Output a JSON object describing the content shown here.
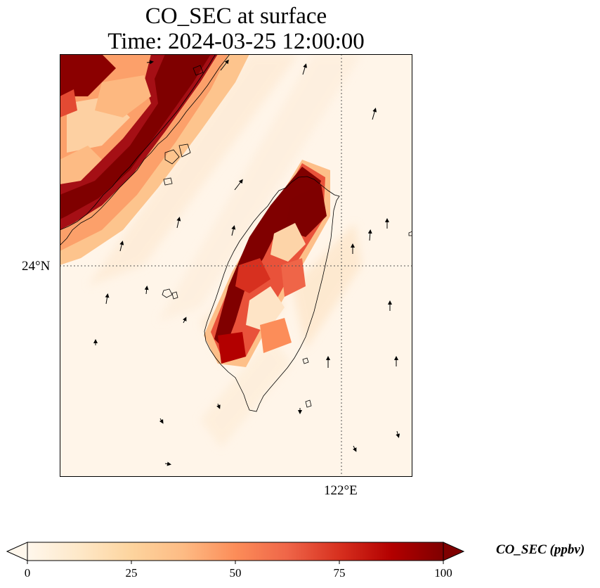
{
  "title": {
    "line1": "CO_SEC at surface",
    "line2": "Time: 2024-03-25 12:00:00"
  },
  "map": {
    "region": "Taiwan Strait / Taiwan",
    "lat_label": "24°N",
    "lon_label": "122°E",
    "gridline_style": "dotted"
  },
  "colorbar": {
    "label": "CO_SEC (ppbv)",
    "colormap": "OrRd",
    "ticks": [
      "0",
      "25",
      "50",
      "75",
      "100"
    ],
    "vmin": 0,
    "vmax": 100,
    "extend": "both"
  },
  "colors": {
    "low": "#fff7ec",
    "mid": "#fc8d59",
    "high": "#7f0000"
  }
}
